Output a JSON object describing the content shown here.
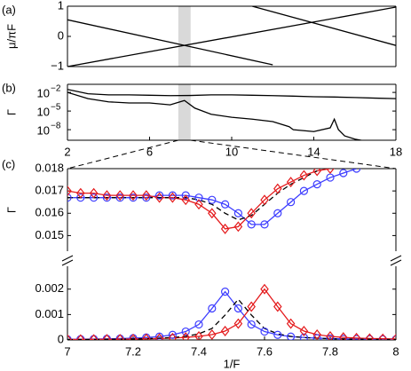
{
  "chart_data": [
    {
      "type": "line",
      "panel_label": "(a)",
      "ylabel": "μ/πF",
      "xlim": [
        2,
        18
      ],
      "ylim": [
        -1,
        1
      ],
      "yticks": [
        {
          "value": -1,
          "label": "−1"
        },
        0,
        1
      ],
      "band": [
        7.4,
        8
      ],
      "series": [
        {
          "color": "#000000",
          "x": [
            2,
            12
          ],
          "values": [
            0.55,
            -0.94
          ]
        },
        {
          "color": "#000000",
          "x": [
            2,
            18
          ],
          "values": [
            -1,
            0.97
          ]
        },
        {
          "color": "#000000",
          "x": [
            11,
            18
          ],
          "values": [
            1,
            -0.3
          ]
        }
      ]
    },
    {
      "type": "line",
      "panel_label": "(b)",
      "ylabel": "Γ",
      "yscale": "log",
      "xlim": [
        2,
        18
      ],
      "ylim": [
        2e-10,
        0.2
      ],
      "xticks": [
        2,
        6,
        10,
        14,
        18
      ],
      "yticks": [
        {
          "value": 1e-08,
          "label": "10",
          "exponent": "−8"
        },
        {
          "value": 1e-05,
          "label": "10",
          "exponent": "−5"
        },
        {
          "value": 0.01,
          "label": "10",
          "exponent": "−2"
        }
      ],
      "band": [
        7.4,
        8
      ],
      "series": [
        {
          "color": "#000000",
          "x": [
            2,
            3,
            4,
            5,
            6,
            7,
            8,
            9,
            10,
            11,
            12,
            13,
            14,
            15,
            16,
            17,
            18
          ],
          "values": [
            0.03,
            0.006,
            0.004,
            0.004,
            0.0035,
            0.003,
            0.0032,
            0.004,
            0.004,
            0.0035,
            0.003,
            0.0025,
            0.002,
            0.0018,
            0.0015,
            0.0012,
            0.001
          ]
        },
        {
          "color": "#000000",
          "x": [
            2,
            3,
            4,
            5,
            6,
            7,
            7.7,
            8.2,
            9,
            10,
            11,
            12,
            12.8,
            13,
            14,
            14.8,
            15,
            15.2,
            15.5,
            16,
            16.5
          ],
          "values": [
            0.01,
            0.001,
            0.0003,
            0.0002,
            0.0002,
            0.0001,
            0.0005,
            3e-05,
            3e-06,
            1e-06,
            5e-07,
            2e-07,
            3e-08,
            1e-08,
            5e-09,
            2e-08,
            5e-07,
            1e-08,
            1e-09,
            3e-10,
            1.5e-10
          ]
        }
      ]
    },
    {
      "type": "line",
      "panel_label": "(c)",
      "ylabel": "Γ",
      "xlim": [
        7,
        8
      ],
      "ylim": [
        0.0143,
        0.018
      ],
      "yticks": [
        0.015,
        0.016,
        0.017,
        0.018
      ],
      "x": [
        7,
        7.04,
        7.08,
        7.12,
        7.16,
        7.2,
        7.24,
        7.28,
        7.32,
        7.36,
        7.4,
        7.44,
        7.48,
        7.52,
        7.56,
        7.6,
        7.64,
        7.68,
        7.72,
        7.76,
        7.8,
        7.84,
        7.88,
        7.92,
        7.96,
        8
      ],
      "series": [
        {
          "color": "#3d3dff",
          "line": true,
          "values": [
            0.0167,
            0.0167,
            0.0167,
            0.0167,
            0.0167,
            0.0167,
            0.0167,
            0.0168,
            0.0168,
            0.0168,
            0.0167,
            0.0166,
            0.0164,
            0.016,
            0.0155,
            0.0155,
            0.016,
            0.0165,
            0.017,
            0.0173,
            0.0176,
            0.0178,
            0.018,
            null,
            null,
            null
          ]
        },
        {
          "color": "#e41a1c",
          "line": true,
          "values": [
            0.017,
            0.0169,
            0.0169,
            0.0168,
            0.0168,
            0.0168,
            0.0168,
            0.0167,
            0.0167,
            0.0166,
            0.0164,
            0.016,
            0.0153,
            0.0154,
            0.016,
            0.0166,
            0.0171,
            0.0174,
            0.0177,
            0.0179,
            0.018,
            null,
            null,
            null,
            null,
            null
          ]
        },
        {
          "color": "#000000",
          "line": true,
          "dash": true,
          "values": [
            0.0167,
            0.0167,
            0.0167,
            0.0167,
            0.0167,
            0.0167,
            0.0167,
            0.0167,
            0.0167,
            0.0167,
            0.0166,
            0.0164,
            0.016,
            0.0157,
            0.0159,
            0.0164,
            0.0169,
            0.0173,
            0.0176,
            0.0179,
            null,
            null,
            null,
            null,
            null,
            null
          ]
        },
        {
          "color": "#3d3dff",
          "marker": "circle",
          "values": [
            0.0167,
            0.0167,
            0.0167,
            0.0167,
            0.0167,
            0.0167,
            0.0167,
            0.0168,
            0.0168,
            0.0168,
            0.0167,
            0.0166,
            0.0164,
            0.016,
            0.0155,
            0.0155,
            0.016,
            0.0165,
            0.017,
            0.0173,
            0.0176,
            0.0178,
            0.018,
            null,
            null,
            null
          ]
        },
        {
          "color": "#e41a1c",
          "marker": "diamond",
          "values": [
            0.017,
            0.0169,
            0.0169,
            0.0168,
            0.0168,
            0.0168,
            0.0168,
            0.0167,
            0.0167,
            0.0166,
            0.0164,
            0.016,
            0.0153,
            0.0154,
            0.016,
            0.0166,
            0.0171,
            0.0174,
            0.0177,
            0.0179,
            0.018,
            null,
            null,
            null,
            null,
            null
          ]
        }
      ]
    },
    {
      "type": "line",
      "xlabel": "1/F",
      "xlim": [
        7,
        8
      ],
      "ylim": [
        0,
        0.0029
      ],
      "xticks": [
        7,
        7.2,
        7.4,
        7.6,
        7.8,
        8
      ],
      "yticks": [
        0,
        0.001,
        0.002
      ],
      "x": [
        7,
        7.04,
        7.08,
        7.12,
        7.16,
        7.2,
        7.24,
        7.28,
        7.32,
        7.36,
        7.4,
        7.44,
        7.48,
        7.52,
        7.56,
        7.6,
        7.64,
        7.68,
        7.72,
        7.76,
        7.8,
        7.84,
        7.88,
        7.92,
        7.96,
        8
      ],
      "series": [
        {
          "color": "#3d3dff",
          "line": true,
          "values": [
            2.5e-05,
            3e-05,
            3.5e-05,
            4.4e-05,
            5.4e-05,
            7e-05,
            9.5e-05,
            0.00013,
            0.0002,
            0.00033,
            0.00061,
            0.00124,
            0.0019,
            0.00124,
            0.00061,
            0.00033,
            0.0002,
            0.00013,
            9.5e-05,
            7e-05,
            5.4e-05,
            4.4e-05,
            3.5e-05,
            3e-05,
            2.5e-05,
            2.1e-05
          ]
        },
        {
          "color": "#e41a1c",
          "line": true,
          "values": [
            1.7e-05,
            1.9e-05,
            2.2e-05,
            2.6e-05,
            3.1e-05,
            3.7e-05,
            4.6e-05,
            5.7e-05,
            7.4e-05,
            0.0001,
            0.00014,
            0.00021,
            0.00035,
            0.00064,
            0.00131,
            0.002,
            0.00131,
            0.00064,
            0.00035,
            0.00021,
            0.00014,
            0.0001,
            7.4e-05,
            5.7e-05,
            4.6e-05,
            3.7e-05
          ]
        },
        {
          "color": "#000000",
          "line": true,
          "dash": true,
          "values": [
            1.5e-05,
            1.7e-05,
            2e-05,
            2.5e-05,
            3e-05,
            4e-05,
            5e-05,
            7e-05,
            9.4e-05,
            0.00014,
            0.00024,
            0.00045,
            0.00098,
            0.0016,
            0.00098,
            0.00045,
            0.00024,
            0.00014,
            9.4e-05,
            7e-05,
            5e-05,
            4e-05,
            3e-05,
            2.5e-05,
            2e-05,
            1.7e-05
          ]
        },
        {
          "color": "#3d3dff",
          "marker": "circle",
          "values": [
            2.5e-05,
            3e-05,
            3.5e-05,
            4.4e-05,
            5.4e-05,
            7e-05,
            9.5e-05,
            0.00013,
            0.0002,
            0.00033,
            0.00061,
            0.00124,
            0.0019,
            0.00124,
            0.00061,
            0.00033,
            0.0002,
            0.00013,
            9.5e-05,
            7e-05,
            5.4e-05,
            4.4e-05,
            3.5e-05,
            3e-05,
            2.5e-05,
            2.1e-05
          ]
        },
        {
          "color": "#e41a1c",
          "marker": "diamond",
          "values": [
            1.7e-05,
            1.9e-05,
            2.2e-05,
            2.6e-05,
            3.1e-05,
            3.7e-05,
            4.6e-05,
            5.7e-05,
            7.4e-05,
            0.0001,
            0.00014,
            0.00021,
            0.00035,
            0.00064,
            0.00131,
            0.002,
            0.00131,
            0.00064,
            0.00035,
            0.00021,
            0.00014,
            0.0001,
            7.4e-05,
            5.7e-05,
            4.6e-05,
            3.7e-05
          ]
        }
      ]
    }
  ]
}
